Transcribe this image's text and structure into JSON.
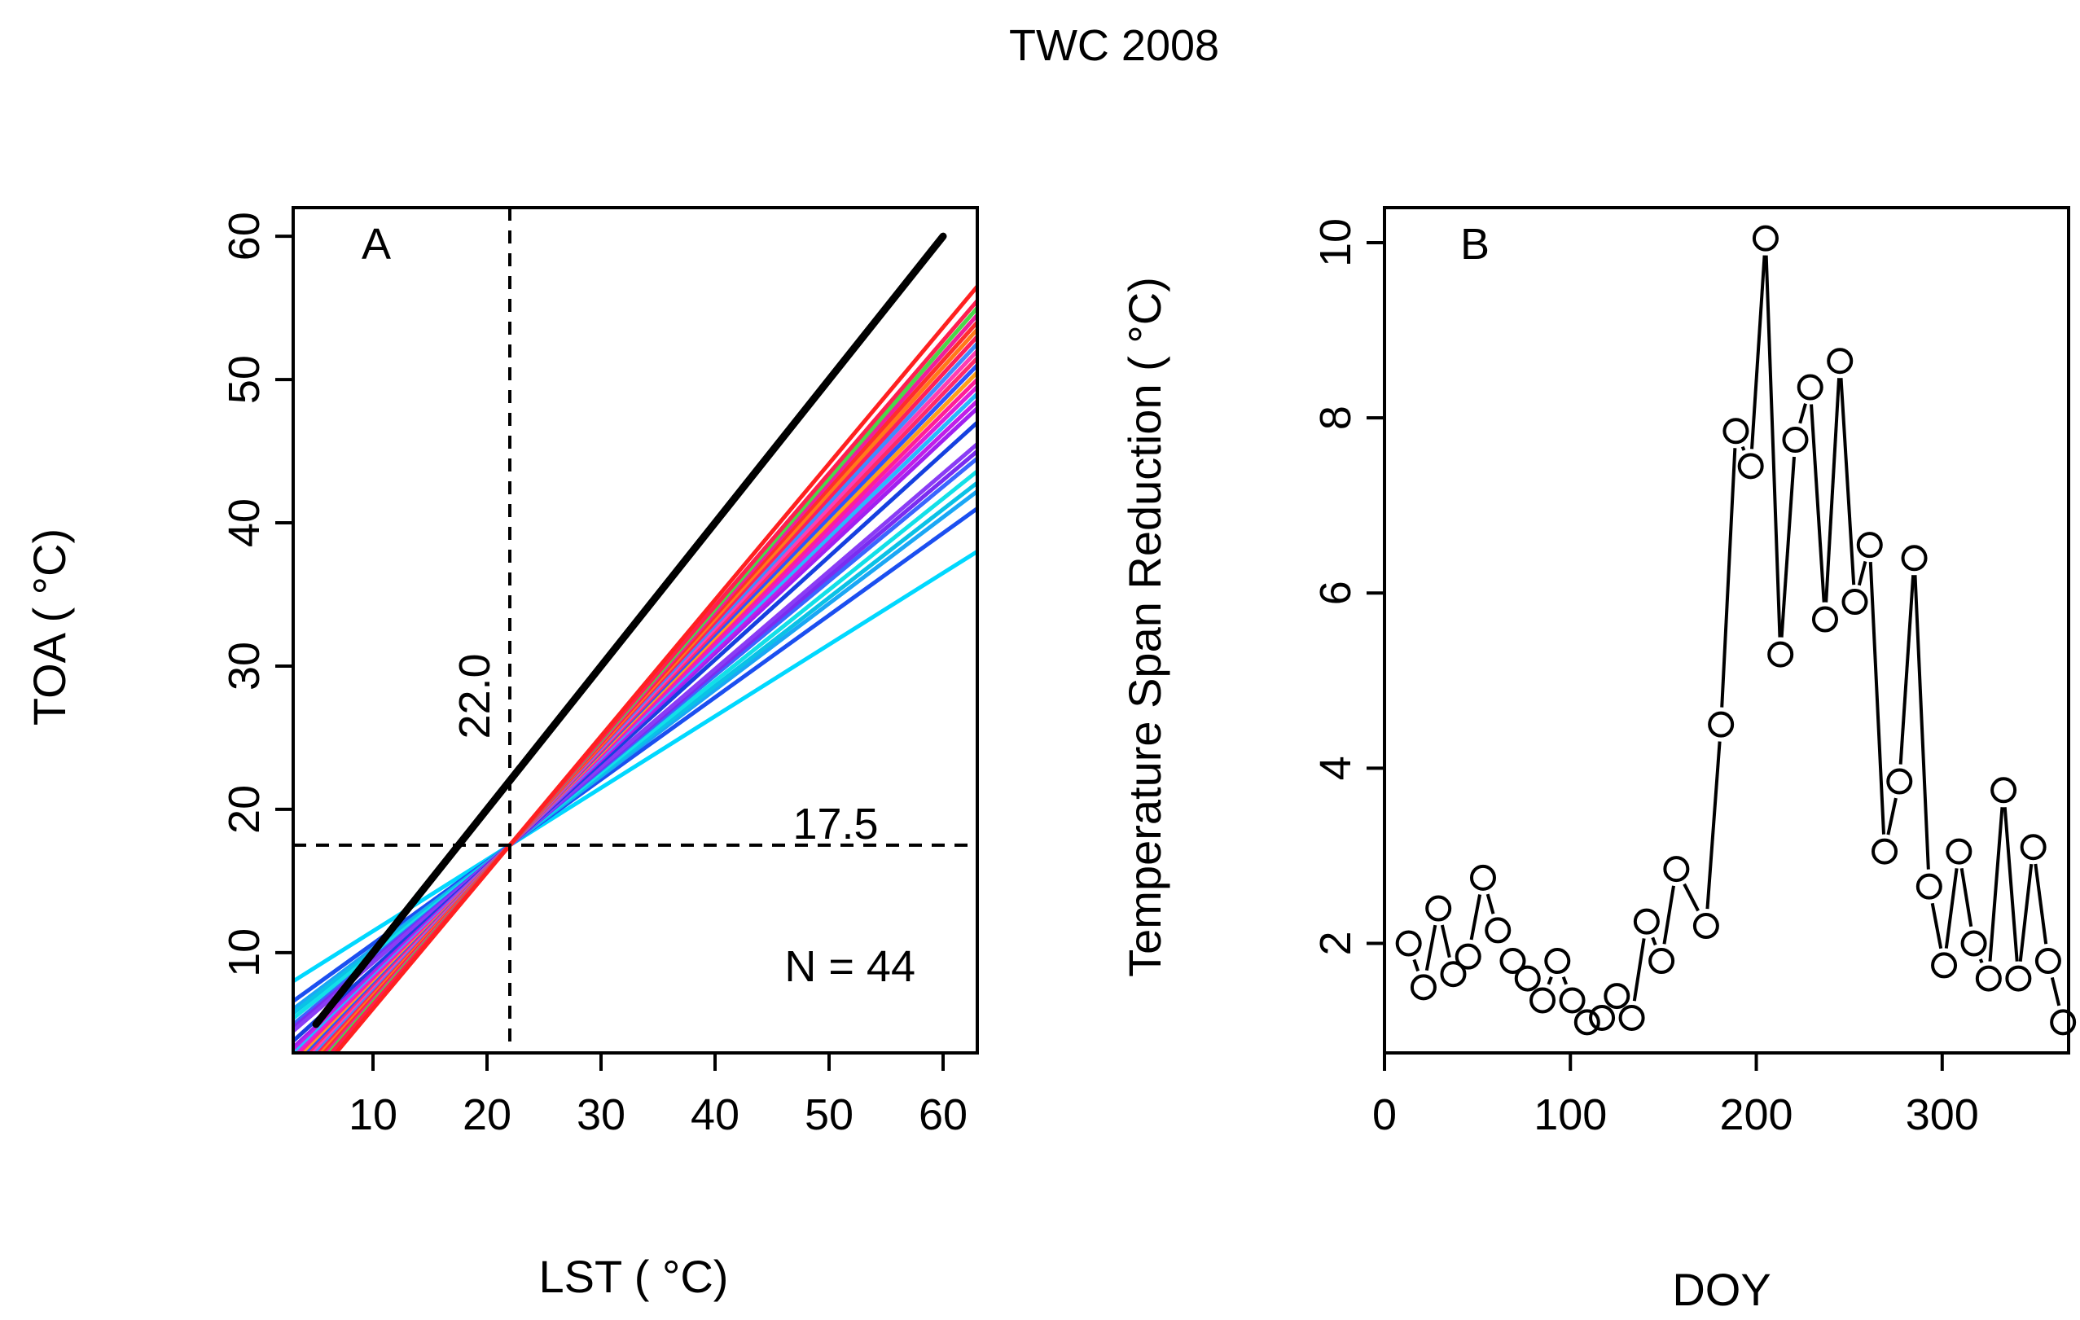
{
  "figure": {
    "title": "TWC 2008",
    "colors": {
      "axis": "#000000",
      "reference_line": "#000000"
    }
  },
  "chart_data": [
    {
      "type": "line",
      "panel_label": "A",
      "xlabel": "LST (  °C)",
      "ylabel": "TOA (  °C)",
      "xlim": [
        3,
        63
      ],
      "ylim": [
        3,
        62
      ],
      "xticks": [
        10,
        20,
        30,
        40,
        50,
        60
      ],
      "yticks": [
        10,
        20,
        30,
        40,
        50,
        60
      ],
      "xtick_labels": [
        "10",
        "20",
        "30",
        "40",
        "50",
        "60"
      ],
      "ytick_labels": [
        "10",
        "20",
        "30",
        "40",
        "50",
        "60"
      ],
      "vline": {
        "x": 22.0,
        "label": "22.0"
      },
      "hline": {
        "y": 17.5,
        "label": "17.5"
      },
      "annotation": "N = 44",
      "reference_line": {
        "x": [
          5,
          60
        ],
        "y": [
          5,
          60
        ]
      },
      "lines_pivot": {
        "x": 22.0,
        "y": 17.5
      },
      "lines_x_range": [
        3,
        63
      ],
      "lines": [
        {
          "y_at_63": 38.0,
          "color": "#00d8ff"
        },
        {
          "y_at_63": 41.0,
          "color": "#1b4ff0"
        },
        {
          "y_at_63": 42.2,
          "color": "#1aa7f5"
        },
        {
          "y_at_63": 42.8,
          "color": "#0ac2e6"
        },
        {
          "y_at_63": 43.6,
          "color": "#12e0e8"
        },
        {
          "y_at_63": 44.5,
          "color": "#3a66ff"
        },
        {
          "y_at_63": 45.0,
          "color": "#7b2cf0"
        },
        {
          "y_at_63": 45.5,
          "color": "#8a3cf5"
        },
        {
          "y_at_63": 47.0,
          "color": "#1540e0"
        },
        {
          "y_at_63": 48.0,
          "color": "#a020f0"
        },
        {
          "y_at_63": 48.5,
          "color": "#c21ee8"
        },
        {
          "y_at_63": 49.0,
          "color": "#28b8ff"
        },
        {
          "y_at_63": 49.5,
          "color": "#e01fd8"
        },
        {
          "y_at_63": 50.0,
          "color": "#ff1e9a"
        },
        {
          "y_at_63": 50.5,
          "color": "#ff9f1a"
        },
        {
          "y_at_63": 51.0,
          "color": "#2e55ff"
        },
        {
          "y_at_63": 51.5,
          "color": "#ff2a6a"
        },
        {
          "y_at_63": 52.0,
          "color": "#ff3db4"
        },
        {
          "y_at_63": 52.5,
          "color": "#3f8cff"
        },
        {
          "y_at_63": 53.0,
          "color": "#ff1e5a"
        },
        {
          "y_at_63": 53.5,
          "color": "#ff7a1a"
        },
        {
          "y_at_63": 54.0,
          "color": "#ff2d2d"
        },
        {
          "y_at_63": 54.5,
          "color": "#f01e9b"
        },
        {
          "y_at_63": 55.0,
          "color": "#4bd64b"
        },
        {
          "y_at_63": 55.5,
          "color": "#ff1e4f"
        },
        {
          "y_at_63": 56.5,
          "color": "#ff2020"
        }
      ]
    },
    {
      "type": "line",
      "panel_label": "B",
      "marker": "open-circle",
      "xlabel": "DOY",
      "ylabel": "Temperature Span Reduction (  °C)",
      "xlim": [
        0,
        368
      ],
      "ylim": [
        0.75,
        10.4
      ],
      "xticks": [
        0,
        100,
        200,
        300
      ],
      "yticks": [
        2,
        4,
        6,
        8,
        10
      ],
      "xtick_labels": [
        "0",
        "100",
        "200",
        "300"
      ],
      "ytick_labels": [
        "2",
        "4",
        "6",
        "8",
        "10"
      ],
      "x": [
        13,
        21,
        29,
        37,
        45,
        53,
        61,
        69,
        77,
        85,
        93,
        101,
        109,
        117,
        125,
        133,
        141,
        149,
        157,
        173,
        181,
        189,
        197,
        205,
        213,
        221,
        229,
        237,
        245,
        253,
        261,
        269,
        277,
        285,
        293,
        301,
        309,
        317,
        325,
        333,
        341,
        349,
        357,
        365
      ],
      "y": [
        2.0,
        1.5,
        2.4,
        1.65,
        1.85,
        2.75,
        2.15,
        1.8,
        1.6,
        1.35,
        1.8,
        1.35,
        1.1,
        1.15,
        1.4,
        1.15,
        2.25,
        1.8,
        2.85,
        2.2,
        4.5,
        7.85,
        7.45,
        10.05,
        5.3,
        7.75,
        8.35,
        5.7,
        8.65,
        5.9,
        6.55,
        3.05,
        3.85,
        6.4,
        2.65,
        1.75,
        3.05,
        2.0,
        1.6,
        3.75,
        1.6,
        3.1,
        1.8,
        1.1
      ]
    }
  ]
}
